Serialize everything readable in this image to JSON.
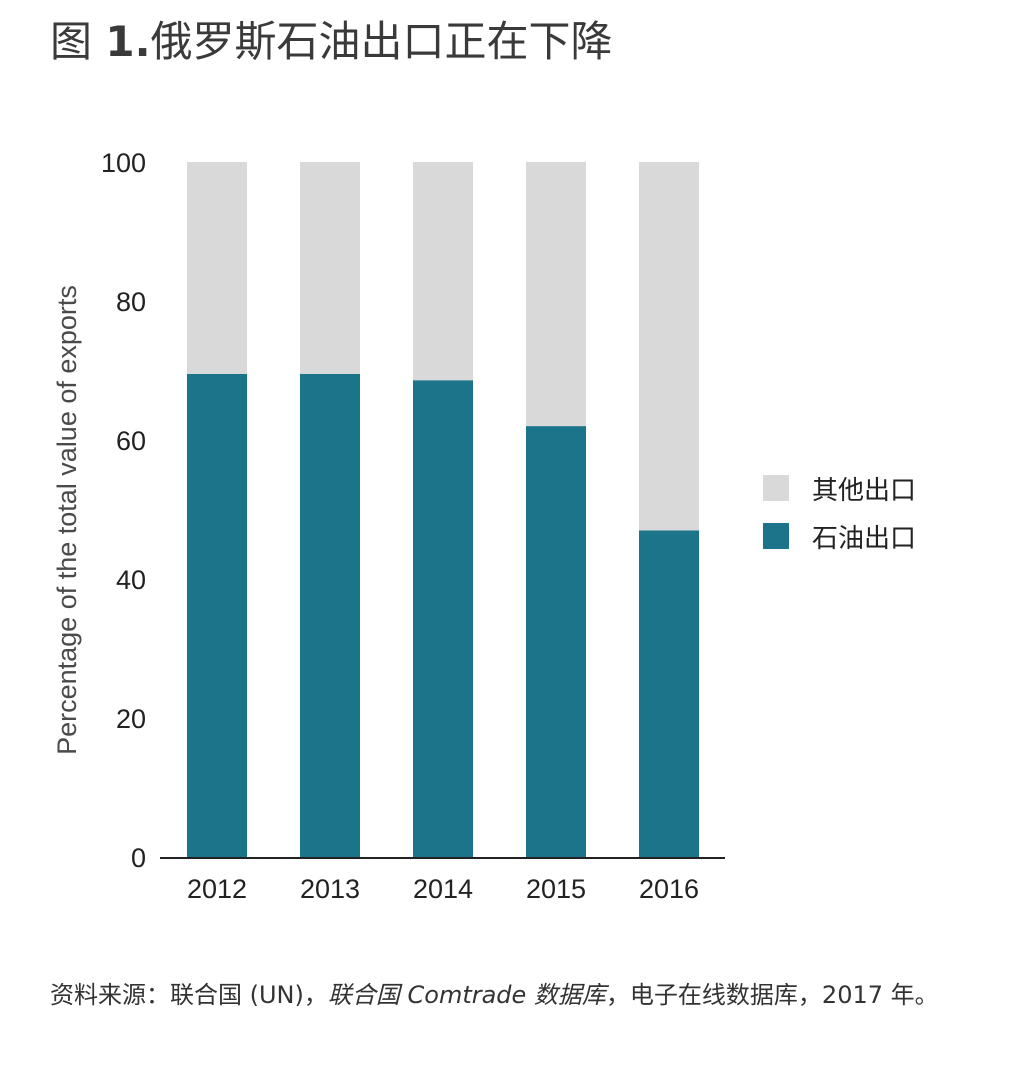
{
  "title": {
    "prefix": "图 ",
    "number": "1.",
    "text": "俄罗斯石油出口正在下降"
  },
  "chart_data": {
    "type": "bar",
    "stacked": true,
    "categories": [
      "2012",
      "2013",
      "2014",
      "2015",
      "2016"
    ],
    "series": [
      {
        "name": "石油出口",
        "values": [
          69.5,
          69.5,
          68.6,
          62,
          47
        ],
        "color": "#1c748a"
      },
      {
        "name": "其他出口",
        "values": [
          30.5,
          30.5,
          31.4,
          38,
          53
        ],
        "color": "#d9d9d9"
      }
    ],
    "ylabel": "Percentage of the total value of exports",
    "xlabel": "",
    "ylim": [
      0,
      100
    ],
    "yticks": [
      "0",
      "20",
      "40",
      "60",
      "80",
      "100"
    ],
    "grid": false,
    "legend": {
      "placement": "right",
      "items": [
        {
          "label": "其他出口",
          "color": "#d9d9d9"
        },
        {
          "label": "石油出口",
          "color": "#1c748a"
        }
      ]
    }
  },
  "source": {
    "part1": "资料来源：联合国 (UN)，",
    "part2": "联合国 Comtrade 数据库",
    "part3": "，电子在线数据库，2017 年。"
  }
}
